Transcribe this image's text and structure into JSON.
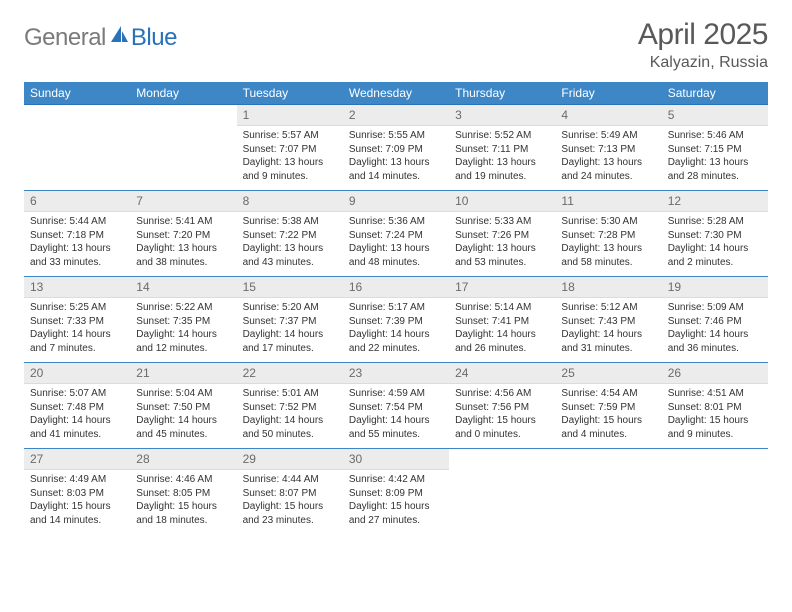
{
  "brand": {
    "general": "General",
    "blue": "Blue"
  },
  "title": "April 2025",
  "location": "Kalyazin, Russia",
  "colors": {
    "header_bg": "#3d87c7",
    "header_text": "#ffffff",
    "row_divider": "#3d87c7",
    "daynum_bg": "#ececec",
    "daynum_text": "#6b6b6b",
    "body_text": "#333333",
    "title_text": "#595959",
    "logo_gray": "#7a7a7a",
    "logo_blue": "#2a71b8",
    "page_bg": "#ffffff"
  },
  "typography": {
    "title_fontsize": 30,
    "location_fontsize": 16,
    "dayheader_fontsize": 12,
    "daynum_fontsize": 12,
    "cell_fontsize": 10,
    "logo_fontsize": 24
  },
  "day_headers": [
    "Sunday",
    "Monday",
    "Tuesday",
    "Wednesday",
    "Thursday",
    "Friday",
    "Saturday"
  ],
  "weeks": [
    [
      {
        "num": "",
        "sunrise": "",
        "sunset": "",
        "daylight": ""
      },
      {
        "num": "",
        "sunrise": "",
        "sunset": "",
        "daylight": ""
      },
      {
        "num": "1",
        "sunrise": "Sunrise: 5:57 AM",
        "sunset": "Sunset: 7:07 PM",
        "daylight": "Daylight: 13 hours and 9 minutes."
      },
      {
        "num": "2",
        "sunrise": "Sunrise: 5:55 AM",
        "sunset": "Sunset: 7:09 PM",
        "daylight": "Daylight: 13 hours and 14 minutes."
      },
      {
        "num": "3",
        "sunrise": "Sunrise: 5:52 AM",
        "sunset": "Sunset: 7:11 PM",
        "daylight": "Daylight: 13 hours and 19 minutes."
      },
      {
        "num": "4",
        "sunrise": "Sunrise: 5:49 AM",
        "sunset": "Sunset: 7:13 PM",
        "daylight": "Daylight: 13 hours and 24 minutes."
      },
      {
        "num": "5",
        "sunrise": "Sunrise: 5:46 AM",
        "sunset": "Sunset: 7:15 PM",
        "daylight": "Daylight: 13 hours and 28 minutes."
      }
    ],
    [
      {
        "num": "6",
        "sunrise": "Sunrise: 5:44 AM",
        "sunset": "Sunset: 7:18 PM",
        "daylight": "Daylight: 13 hours and 33 minutes."
      },
      {
        "num": "7",
        "sunrise": "Sunrise: 5:41 AM",
        "sunset": "Sunset: 7:20 PM",
        "daylight": "Daylight: 13 hours and 38 minutes."
      },
      {
        "num": "8",
        "sunrise": "Sunrise: 5:38 AM",
        "sunset": "Sunset: 7:22 PM",
        "daylight": "Daylight: 13 hours and 43 minutes."
      },
      {
        "num": "9",
        "sunrise": "Sunrise: 5:36 AM",
        "sunset": "Sunset: 7:24 PM",
        "daylight": "Daylight: 13 hours and 48 minutes."
      },
      {
        "num": "10",
        "sunrise": "Sunrise: 5:33 AM",
        "sunset": "Sunset: 7:26 PM",
        "daylight": "Daylight: 13 hours and 53 minutes."
      },
      {
        "num": "11",
        "sunrise": "Sunrise: 5:30 AM",
        "sunset": "Sunset: 7:28 PM",
        "daylight": "Daylight: 13 hours and 58 minutes."
      },
      {
        "num": "12",
        "sunrise": "Sunrise: 5:28 AM",
        "sunset": "Sunset: 7:30 PM",
        "daylight": "Daylight: 14 hours and 2 minutes."
      }
    ],
    [
      {
        "num": "13",
        "sunrise": "Sunrise: 5:25 AM",
        "sunset": "Sunset: 7:33 PM",
        "daylight": "Daylight: 14 hours and 7 minutes."
      },
      {
        "num": "14",
        "sunrise": "Sunrise: 5:22 AM",
        "sunset": "Sunset: 7:35 PM",
        "daylight": "Daylight: 14 hours and 12 minutes."
      },
      {
        "num": "15",
        "sunrise": "Sunrise: 5:20 AM",
        "sunset": "Sunset: 7:37 PM",
        "daylight": "Daylight: 14 hours and 17 minutes."
      },
      {
        "num": "16",
        "sunrise": "Sunrise: 5:17 AM",
        "sunset": "Sunset: 7:39 PM",
        "daylight": "Daylight: 14 hours and 22 minutes."
      },
      {
        "num": "17",
        "sunrise": "Sunrise: 5:14 AM",
        "sunset": "Sunset: 7:41 PM",
        "daylight": "Daylight: 14 hours and 26 minutes."
      },
      {
        "num": "18",
        "sunrise": "Sunrise: 5:12 AM",
        "sunset": "Sunset: 7:43 PM",
        "daylight": "Daylight: 14 hours and 31 minutes."
      },
      {
        "num": "19",
        "sunrise": "Sunrise: 5:09 AM",
        "sunset": "Sunset: 7:46 PM",
        "daylight": "Daylight: 14 hours and 36 minutes."
      }
    ],
    [
      {
        "num": "20",
        "sunrise": "Sunrise: 5:07 AM",
        "sunset": "Sunset: 7:48 PM",
        "daylight": "Daylight: 14 hours and 41 minutes."
      },
      {
        "num": "21",
        "sunrise": "Sunrise: 5:04 AM",
        "sunset": "Sunset: 7:50 PM",
        "daylight": "Daylight: 14 hours and 45 minutes."
      },
      {
        "num": "22",
        "sunrise": "Sunrise: 5:01 AM",
        "sunset": "Sunset: 7:52 PM",
        "daylight": "Daylight: 14 hours and 50 minutes."
      },
      {
        "num": "23",
        "sunrise": "Sunrise: 4:59 AM",
        "sunset": "Sunset: 7:54 PM",
        "daylight": "Daylight: 14 hours and 55 minutes."
      },
      {
        "num": "24",
        "sunrise": "Sunrise: 4:56 AM",
        "sunset": "Sunset: 7:56 PM",
        "daylight": "Daylight: 15 hours and 0 minutes."
      },
      {
        "num": "25",
        "sunrise": "Sunrise: 4:54 AM",
        "sunset": "Sunset: 7:59 PM",
        "daylight": "Daylight: 15 hours and 4 minutes."
      },
      {
        "num": "26",
        "sunrise": "Sunrise: 4:51 AM",
        "sunset": "Sunset: 8:01 PM",
        "daylight": "Daylight: 15 hours and 9 minutes."
      }
    ],
    [
      {
        "num": "27",
        "sunrise": "Sunrise: 4:49 AM",
        "sunset": "Sunset: 8:03 PM",
        "daylight": "Daylight: 15 hours and 14 minutes."
      },
      {
        "num": "28",
        "sunrise": "Sunrise: 4:46 AM",
        "sunset": "Sunset: 8:05 PM",
        "daylight": "Daylight: 15 hours and 18 minutes."
      },
      {
        "num": "29",
        "sunrise": "Sunrise: 4:44 AM",
        "sunset": "Sunset: 8:07 PM",
        "daylight": "Daylight: 15 hours and 23 minutes."
      },
      {
        "num": "30",
        "sunrise": "Sunrise: 4:42 AM",
        "sunset": "Sunset: 8:09 PM",
        "daylight": "Daylight: 15 hours and 27 minutes."
      },
      {
        "num": "",
        "sunrise": "",
        "sunset": "",
        "daylight": ""
      },
      {
        "num": "",
        "sunrise": "",
        "sunset": "",
        "daylight": ""
      },
      {
        "num": "",
        "sunrise": "",
        "sunset": "",
        "daylight": ""
      }
    ]
  ]
}
